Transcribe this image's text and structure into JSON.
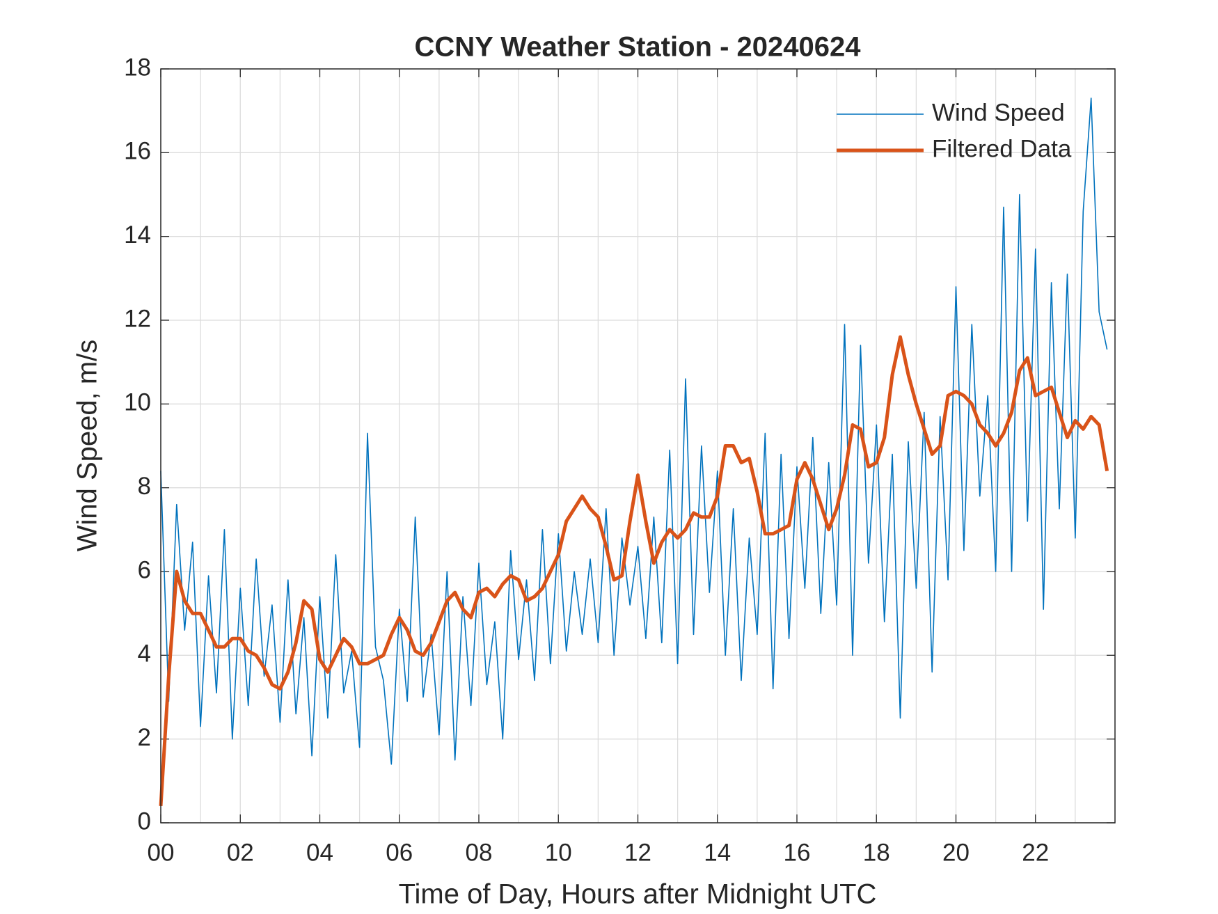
{
  "chart_data": {
    "type": "line",
    "title": "CCNY Weather Station - 20240624",
    "xlabel": "Time of Day, Hours after Midnight UTC",
    "ylabel": "Wind Speed, m/s",
    "x": [
      0,
      0.2,
      0.4,
      0.6,
      0.8,
      1,
      1.2,
      1.4,
      1.6,
      1.8,
      2,
      2.2,
      2.4,
      2.6,
      2.8,
      3,
      3.2,
      3.4,
      3.6,
      3.8,
      4,
      4.2,
      4.4,
      4.6,
      4.8,
      5,
      5.2,
      5.4,
      5.6,
      5.8,
      6,
      6.2,
      6.4,
      6.6,
      6.8,
      7,
      7.2,
      7.4,
      7.6,
      7.8,
      8,
      8.2,
      8.4,
      8.6,
      8.8,
      9,
      9.2,
      9.4,
      9.6,
      9.8,
      10,
      10.2,
      10.4,
      10.6,
      10.8,
      11,
      11.2,
      11.4,
      11.6,
      11.8,
      12,
      12.2,
      12.4,
      12.6,
      12.8,
      13,
      13.2,
      13.4,
      13.6,
      13.8,
      14,
      14.2,
      14.4,
      14.6,
      14.8,
      15,
      15.2,
      15.4,
      15.6,
      15.8,
      16,
      16.2,
      16.4,
      16.6,
      16.8,
      17,
      17.2,
      17.4,
      17.6,
      17.8,
      18,
      18.2,
      18.4,
      18.6,
      18.8,
      19,
      19.2,
      19.4,
      19.6,
      19.8,
      20,
      20.2,
      20.4,
      20.6,
      20.8,
      21,
      21.2,
      21.4,
      21.6,
      21.8,
      22,
      22.2,
      22.4,
      22.6,
      22.8,
      23,
      23.2,
      23.4,
      23.6,
      23.8
    ],
    "series": [
      {
        "name": "Wind Speed",
        "color": "#0072bd",
        "values": [
          8.4,
          2.9,
          7.6,
          4.6,
          6.7,
          2.3,
          5.9,
          3.1,
          7.0,
          2.0,
          5.6,
          2.8,
          6.3,
          3.5,
          5.2,
          2.4,
          5.8,
          2.6,
          4.9,
          1.6,
          5.4,
          2.5,
          6.4,
          3.1,
          4.1,
          1.8,
          9.3,
          4.2,
          3.4,
          1.4,
          5.1,
          2.9,
          7.3,
          3.0,
          4.5,
          2.1,
          6.0,
          1.5,
          5.4,
          2.8,
          6.2,
          3.3,
          4.8,
          2.0,
          6.5,
          3.9,
          5.8,
          3.4,
          7.0,
          3.8,
          6.9,
          4.1,
          6.0,
          4.5,
          6.3,
          4.3,
          7.5,
          4.0,
          6.8,
          5.2,
          6.6,
          4.4,
          7.3,
          4.3,
          8.9,
          3.8,
          10.6,
          4.5,
          9.0,
          5.5,
          8.4,
          4.0,
          7.5,
          3.4,
          6.8,
          4.5,
          9.3,
          3.2,
          8.8,
          4.4,
          8.5,
          5.6,
          9.2,
          5.0,
          8.6,
          5.2,
          11.9,
          4.0,
          11.4,
          6.2,
          9.5,
          4.8,
          8.8,
          2.5,
          9.1,
          5.6,
          9.8,
          3.6,
          9.7,
          5.8,
          12.8,
          6.5,
          11.9,
          7.8,
          10.2,
          6.0,
          14.7,
          6.0,
          15.0,
          7.2,
          13.7,
          5.1,
          12.9,
          7.5,
          13.1,
          6.8,
          14.6,
          17.3,
          12.2,
          11.3
        ]
      },
      {
        "name": "Filtered Data",
        "color": "#d95319",
        "values": [
          0.4,
          3.5,
          6.0,
          5.3,
          5.0,
          5.0,
          4.6,
          4.2,
          4.2,
          4.4,
          4.4,
          4.1,
          4.0,
          3.7,
          3.3,
          3.2,
          3.6,
          4.3,
          5.3,
          5.1,
          3.9,
          3.6,
          4.0,
          4.4,
          4.2,
          3.8,
          3.8,
          3.9,
          4.0,
          4.5,
          4.9,
          4.6,
          4.1,
          4.0,
          4.3,
          4.8,
          5.3,
          5.5,
          5.1,
          4.9,
          5.5,
          5.6,
          5.4,
          5.7,
          5.9,
          5.8,
          5.3,
          5.4,
          5.6,
          6.0,
          6.4,
          7.2,
          7.5,
          7.8,
          7.5,
          7.3,
          6.6,
          5.8,
          5.9,
          7.2,
          8.3,
          7.2,
          6.2,
          6.7,
          7.0,
          6.8,
          7.0,
          7.4,
          7.3,
          7.3,
          7.8,
          9.0,
          9.0,
          8.6,
          8.7,
          7.9,
          6.9,
          6.9,
          7.0,
          7.1,
          8.2,
          8.6,
          8.2,
          7.6,
          7.0,
          7.5,
          8.3,
          9.5,
          9.4,
          8.5,
          8.6,
          9.2,
          10.7,
          11.6,
          10.7,
          10.0,
          9.4,
          8.8,
          9.0,
          10.2,
          10.3,
          10.2,
          10.0,
          9.5,
          9.3,
          9.0,
          9.3,
          9.8,
          10.8,
          11.1,
          10.2,
          10.3,
          10.4,
          9.8,
          9.2,
          9.6,
          9.4,
          9.7,
          9.5,
          8.4
        ]
      }
    ],
    "xlim": [
      0,
      24
    ],
    "xticks": [
      {
        "value": 0,
        "label": "00"
      },
      {
        "value": 2,
        "label": "02"
      },
      {
        "value": 4,
        "label": "04"
      },
      {
        "value": 6,
        "label": "06"
      },
      {
        "value": 8,
        "label": "08"
      },
      10,
      12,
      14,
      16,
      18,
      20,
      22
    ],
    "xminorticks": [
      1,
      3,
      5,
      7,
      9,
      11,
      13,
      15,
      17,
      19,
      21,
      23
    ],
    "ylim": [
      0,
      18
    ],
    "yticks": [
      0,
      2,
      4,
      6,
      8,
      10,
      12,
      14,
      16,
      18
    ],
    "grid": true,
    "legend": "upper right"
  }
}
